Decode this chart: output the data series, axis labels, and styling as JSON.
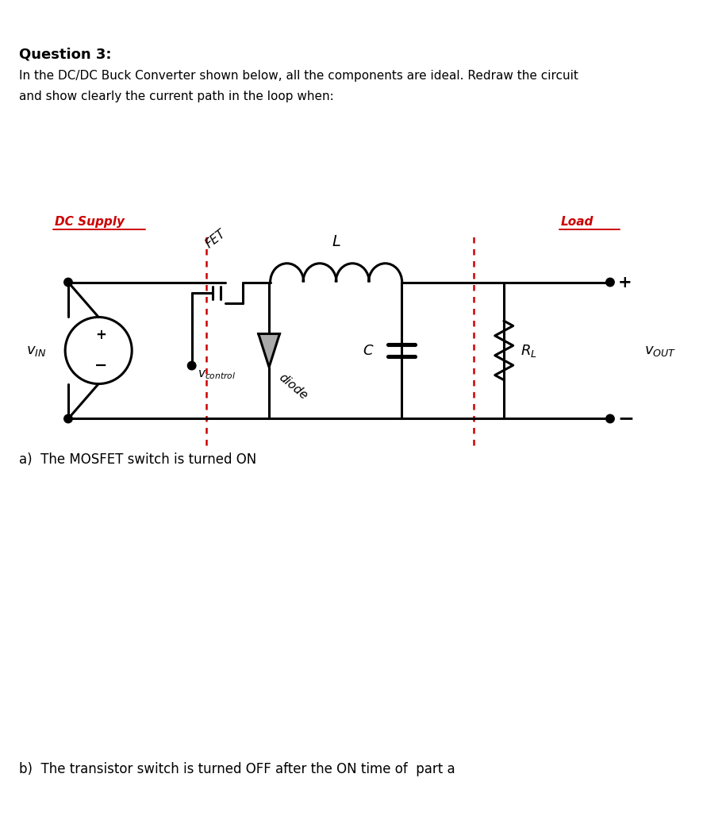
{
  "title_q": "Question 3:",
  "desc_line1": "In the DC/DC Buck Converter shown below, all the components are ideal. Redraw the circuit",
  "desc_line2": "and show clearly the current path in the loop when:",
  "label_dc_supply": "DC Supply",
  "label_load": "Load",
  "label_FET": "FET",
  "label_L": "L",
  "label_C": "C",
  "label_RL": "R_L",
  "label_vcontrol": "v_{control}",
  "label_diode": "diode",
  "label_vin": "v_{IN}",
  "label_vout": "v_{OUT}",
  "label_plus": "+",
  "label_minus": "−",
  "text_a": "a)  The MOSFET switch is turned ON",
  "text_b": "b)  The transistor switch is turned OFF after the ON time of  part a",
  "color_red": "#cc0000",
  "color_black": "#000000",
  "color_white": "#ffffff",
  "color_gray": "#aaaaaa",
  "lw": 2.2
}
